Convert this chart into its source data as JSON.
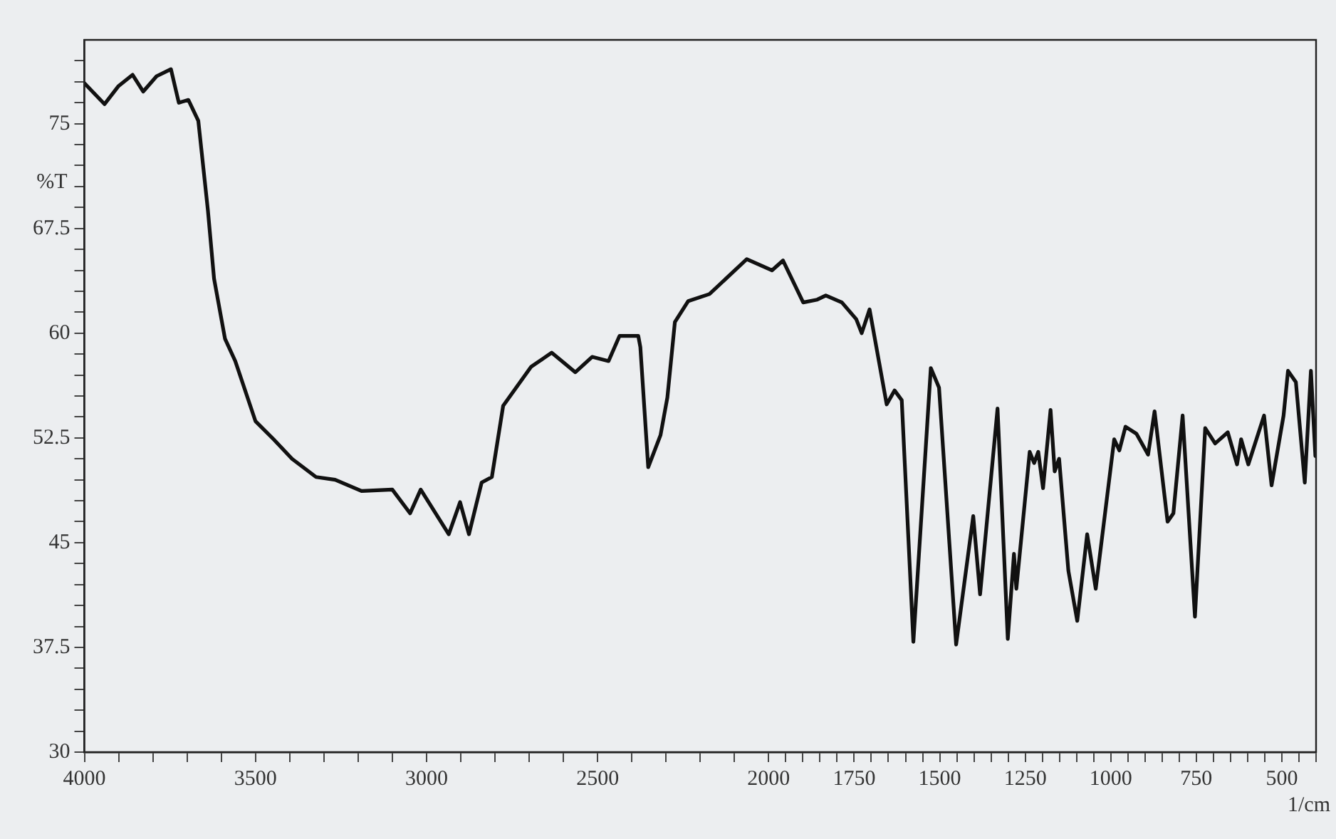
{
  "chart_data": {
    "type": "line",
    "xlabel": "1/cm",
    "ylabel": "%T",
    "x": [
      4000,
      3941,
      3900,
      3859,
      3828,
      3789,
      3747,
      3724,
      3696,
      3667,
      3639,
      3621,
      3589,
      3559,
      3500,
      3447,
      3393,
      3323,
      3267,
      3190,
      3100,
      3048,
      3017,
      2935,
      2902,
      2876,
      2839,
      2809,
      2776,
      2694,
      2634,
      2565,
      2516,
      2468,
      2436,
      2381,
      2375,
      2352,
      2316,
      2296,
      2274,
      2235,
      2173,
      2064,
      1990,
      1958,
      1899,
      1858,
      1833,
      1786,
      1744,
      1728,
      1705,
      1655,
      1632,
      1611,
      1577,
      1526,
      1502,
      1452,
      1402,
      1382,
      1331,
      1301,
      1283,
      1276,
      1237,
      1224,
      1212,
      1198,
      1176,
      1164,
      1151,
      1124,
      1098,
      1069,
      1044,
      990,
      975,
      957,
      925,
      891,
      872,
      834,
      817,
      790,
      754,
      724,
      695,
      658,
      631,
      619,
      598,
      552,
      530,
      495,
      482,
      459,
      433,
      415,
      402
    ],
    "series": [
      {
        "color": "#111111",
        "values": [
          77.9,
          76.4,
          77.7,
          78.5,
          77.3,
          78.4,
          78.9,
          76.5,
          76.7,
          75.2,
          68.8,
          63.9,
          59.6,
          58.0,
          53.7,
          52.4,
          51.0,
          49.7,
          49.5,
          48.7,
          48.8,
          47.1,
          48.8,
          45.6,
          47.9,
          45.6,
          49.3,
          49.7,
          54.8,
          57.6,
          58.6,
          57.2,
          58.3,
          58.0,
          59.8,
          59.8,
          59.0,
          50.4,
          52.7,
          55.4,
          60.8,
          62.3,
          62.8,
          65.3,
          64.5,
          65.2,
          62.2,
          62.4,
          62.7,
          62.2,
          61.0,
          60.0,
          61.7,
          54.9,
          55.9,
          55.2,
          37.9,
          57.5,
          56.1,
          37.7,
          46.9,
          41.3,
          54.6,
          38.1,
          44.2,
          41.7,
          51.5,
          50.7,
          51.5,
          48.9,
          54.5,
          50.1,
          51.0,
          43.0,
          39.4,
          45.6,
          41.7,
          52.4,
          51.6,
          53.3,
          52.8,
          51.3,
          54.4,
          46.5,
          47.1,
          54.1,
          39.7,
          53.2,
          52.1,
          52.9,
          50.6,
          52.4,
          50.6,
          54.1,
          49.1,
          54.1,
          57.3,
          56.5,
          49.3,
          57.3,
          51.2
        ]
      }
    ],
    "xlim": [
      4000,
      400
    ],
    "xticks": [
      4000,
      {
        "value": 3900,
        "label": null
      },
      {
        "value": 3800,
        "label": null
      },
      {
        "value": 3700,
        "label": null
      },
      {
        "value": 3600,
        "label": null
      },
      3500,
      {
        "value": 3400,
        "label": null
      },
      {
        "value": 3300,
        "label": null
      },
      {
        "value": 3200,
        "label": null
      },
      {
        "value": 3100,
        "label": null
      },
      3000,
      {
        "value": 2900,
        "label": null
      },
      {
        "value": 2800,
        "label": null
      },
      {
        "value": 2700,
        "label": null
      },
      {
        "value": 2600,
        "label": null
      },
      2500,
      {
        "value": 2400,
        "label": null
      },
      {
        "value": 2300,
        "label": null
      },
      {
        "value": 2200,
        "label": null
      },
      {
        "value": 2100,
        "label": null
      },
      2000,
      {
        "value": 1950,
        "label": null
      },
      {
        "value": 1900,
        "label": null
      },
      {
        "value": 1850,
        "label": null
      },
      {
        "value": 1800,
        "label": null
      },
      1750,
      {
        "value": 1700,
        "label": null
      },
      {
        "value": 1650,
        "label": null
      },
      {
        "value": 1600,
        "label": null
      },
      {
        "value": 1550,
        "label": null
      },
      1500,
      {
        "value": 1450,
        "label": null
      },
      {
        "value": 1400,
        "label": null
      },
      {
        "value": 1350,
        "label": null
      },
      {
        "value": 1300,
        "label": null
      },
      1250,
      {
        "value": 1200,
        "label": null
      },
      {
        "value": 1150,
        "label": null
      },
      {
        "value": 1100,
        "label": null
      },
      {
        "value": 1050,
        "label": null
      },
      1000,
      {
        "value": 950,
        "label": null
      },
      {
        "value": 900,
        "label": null
      },
      {
        "value": 850,
        "label": null
      },
      {
        "value": 800,
        "label": null
      },
      750,
      {
        "value": 700,
        "label": null
      },
      {
        "value": 650,
        "label": null
      },
      {
        "value": 600,
        "label": null
      },
      {
        "value": 550,
        "label": null
      },
      500,
      {
        "value": 450,
        "label": null
      },
      {
        "value": 400,
        "label": null
      }
    ],
    "ylim": [
      30,
      81
    ],
    "yticks": [
      30,
      {
        "value": 31.5,
        "label": null
      },
      {
        "value": 33,
        "label": null
      },
      {
        "value": 34.5,
        "label": null
      },
      {
        "value": 36,
        "label": null
      },
      37.5,
      {
        "value": 39,
        "label": null
      },
      {
        "value": 40.5,
        "label": null
      },
      {
        "value": 42,
        "label": null
      },
      {
        "value": 43.5,
        "label": null
      },
      45,
      {
        "value": 46.5,
        "label": null
      },
      {
        "value": 48,
        "label": null
      },
      {
        "value": 49.5,
        "label": null
      },
      {
        "value": 51,
        "label": null
      },
      52.5,
      {
        "value": 54,
        "label": null
      },
      {
        "value": 55.5,
        "label": null
      },
      {
        "value": 57,
        "label": null
      },
      {
        "value": 58.5,
        "label": null
      },
      60,
      {
        "value": 61.5,
        "label": null
      },
      {
        "value": 63,
        "label": null
      },
      {
        "value": 64.5,
        "label": null
      },
      {
        "value": 66,
        "label": null
      },
      67.5,
      {
        "value": 69,
        "label": null
      },
      {
        "value": 70.5,
        "label": null
      },
      {
        "value": 72,
        "label": null
      },
      {
        "value": 73.5,
        "label": null
      },
      75,
      {
        "value": 76.5,
        "label": null
      },
      {
        "value": 78,
        "label": null
      },
      {
        "value": 79.5,
        "label": null
      }
    ],
    "grid": false,
    "legend": false,
    "marker": "none",
    "line_style": "solid"
  }
}
